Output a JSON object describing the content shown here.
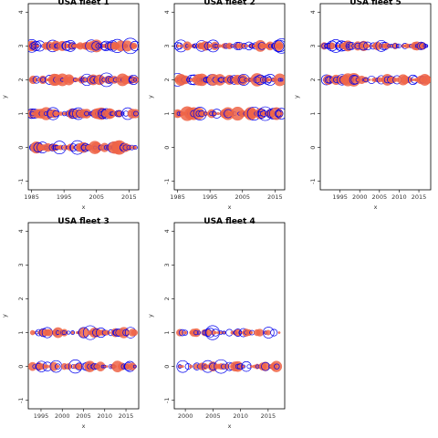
{
  "colors": {
    "observed": "#ef6548",
    "predicted": "#0000ee"
  },
  "chart_data": [
    {
      "type": "scatter",
      "title": "USA fleet 1",
      "xlabel": "x",
      "ylabel": "y",
      "xlim": [
        1984,
        2018
      ],
      "ylim": [
        -1.25,
        4.25
      ],
      "xticks": [
        1985,
        1995,
        2005,
        2015
      ],
      "yticks": [
        -1,
        0,
        1,
        2,
        3,
        4
      ],
      "categories_y": [
        0,
        1,
        2,
        3
      ],
      "years": [
        1985,
        2017
      ]
    },
    {
      "type": "scatter",
      "title": "USA fleet 2",
      "xlabel": "x",
      "ylabel": "y",
      "xlim": [
        1984,
        2018
      ],
      "ylim": [
        -1.25,
        4.25
      ],
      "xticks": [
        1985,
        1995,
        2005,
        2015
      ],
      "yticks": [
        -1,
        0,
        1,
        2,
        3,
        4
      ],
      "categories_y": [
        1,
        2,
        3
      ],
      "years": [
        1985,
        2017
      ]
    },
    {
      "type": "scatter",
      "title": "USA fleet 5",
      "xlabel": "x",
      "ylabel": "y",
      "xlim": [
        1990,
        2018
      ],
      "ylim": [
        -1.25,
        4.25
      ],
      "xticks": [
        1995,
        2000,
        2005,
        2010,
        2015
      ],
      "yticks": [
        -1,
        0,
        1,
        2,
        3,
        4
      ],
      "categories_y": [
        2,
        3
      ],
      "years": [
        1991,
        2017
      ]
    },
    {
      "type": "scatter",
      "title": "USA fleet 3",
      "xlabel": "x",
      "ylabel": "y",
      "xlim": [
        1992,
        2018
      ],
      "ylim": [
        -1.25,
        4.25
      ],
      "xticks": [
        1995,
        2000,
        2005,
        2010,
        2015
      ],
      "yticks": [
        -1,
        0,
        1,
        2,
        3,
        4
      ],
      "categories_y": [
        0,
        1
      ],
      "years": [
        1993,
        2017
      ]
    },
    {
      "type": "scatter",
      "title": "USA fleet 4",
      "xlabel": "x",
      "ylabel": "y",
      "xlim": [
        1998,
        2018
      ],
      "ylim": [
        -1.25,
        4.25
      ],
      "xticks": [
        2000,
        2005,
        2010,
        2015
      ],
      "yticks": [
        -1,
        0,
        1,
        2,
        3,
        4
      ],
      "categories_y": [
        0,
        1
      ],
      "years": [
        1999,
        2017
      ]
    }
  ]
}
